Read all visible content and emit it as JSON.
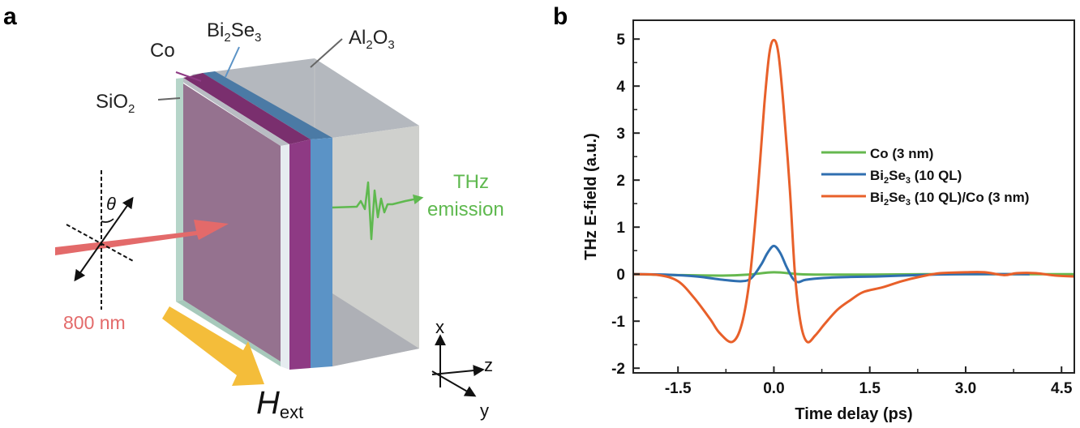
{
  "panel_a": {
    "panel_label": "a",
    "layers": {
      "co": {
        "label": "Co",
        "color": "#8e3a84"
      },
      "bi2se3": {
        "label_main": "Bi",
        "sub1": "2",
        "label_mid": "Se",
        "sub2": "3",
        "color": "#5b93c6"
      },
      "al2o3": {
        "label_main": "Al",
        "sub1": "2",
        "label_mid": "O",
        "sub2": "3",
        "color": "#c9cbc8"
      },
      "sio2": {
        "label_main": "SiO",
        "sub1": "2",
        "color": "#b6d5c9"
      },
      "substrate_face_color": "#95728f"
    },
    "pump": {
      "label": "800 nm",
      "color": "#e36a6a"
    },
    "polarization_angle_symbol": "θ",
    "emission": {
      "line1": "THz",
      "line2": "emission",
      "color": "#5fb94f"
    },
    "field": {
      "symbol": "H",
      "subscript": "ext",
      "color": "#f4bd3a"
    },
    "axes": {
      "x": "x",
      "y": "y",
      "z": "z"
    }
  },
  "panel_b": {
    "panel_label": "b"
  },
  "chart_data": {
    "type": "line",
    "title": "",
    "xlabel": "Time delay (ps)",
    "ylabel": "THz E-field (a.u.)",
    "xlim": [
      -2.2,
      4.7
    ],
    "ylim": [
      -2.1,
      5.4
    ],
    "xticks": [
      -1.5,
      0.0,
      1.5,
      3.0,
      4.5
    ],
    "xtick_labels": [
      "-1.5",
      "0.0",
      "1.5",
      "3.0",
      "4.5"
    ],
    "xminor": [
      -0.75,
      0.75,
      2.25,
      3.75
    ],
    "yticks": [
      -2,
      -1,
      0,
      1,
      2,
      3,
      4,
      5
    ],
    "ytick_labels": [
      "-2",
      "-1",
      "0",
      "1",
      "2",
      "3",
      "4",
      "5"
    ],
    "yminor": [
      -1.5,
      -0.5,
      0.5,
      1.5,
      2.5,
      3.5,
      4.5
    ],
    "grid": false,
    "legend_position": "center-right",
    "series": [
      {
        "name": "Co (3 nm)",
        "legend_main": "Co (3 nm)",
        "color": "#66b84f",
        "x": [
          -2.2,
          -1.5,
          -0.8,
          -0.4,
          0.0,
          0.4,
          0.8,
          1.5,
          2.5,
          3.5,
          4.7
        ],
        "y": [
          0.0,
          -0.02,
          -0.03,
          -0.01,
          0.04,
          0.0,
          -0.01,
          -0.01,
          0.0,
          0.0,
          0.0
        ]
      },
      {
        "name": "Bi2Se3 (10 QL)",
        "legend_main": "Bi",
        "legend_sub1": "2",
        "legend_mid": "Se",
        "legend_sub2": "3",
        "legend_tail": " (10 QL)",
        "color": "#2f6fb0",
        "x": [
          -2.2,
          -1.7,
          -1.2,
          -0.8,
          -0.5,
          -0.35,
          -0.2,
          -0.1,
          0.0,
          0.1,
          0.2,
          0.3,
          0.38,
          0.5,
          0.8,
          1.2,
          1.6,
          2.0,
          2.5,
          3.0,
          4.0
        ],
        "y": [
          0.0,
          -0.01,
          -0.05,
          -0.12,
          -0.15,
          -0.08,
          0.2,
          0.45,
          0.6,
          0.45,
          0.15,
          -0.1,
          -0.17,
          -0.12,
          -0.08,
          -0.06,
          -0.05,
          -0.03,
          -0.01,
          0.0,
          0.0
        ]
      },
      {
        "name": "Bi2Se3 (10 QL)/Co (3 nm)",
        "legend_main": "Bi",
        "legend_sub1": "2",
        "legend_mid": "Se",
        "legend_sub2": "3",
        "legend_tail": " (10 QL)/Co (3 nm)",
        "color": "#e8602a",
        "x": [
          -2.2,
          -1.8,
          -1.5,
          -1.25,
          -1.0,
          -0.85,
          -0.65,
          -0.5,
          -0.37,
          -0.25,
          -0.15,
          -0.07,
          0.0,
          0.07,
          0.15,
          0.25,
          0.33,
          0.42,
          0.52,
          0.65,
          0.8,
          1.0,
          1.2,
          1.4,
          1.7,
          2.0,
          2.3,
          2.6,
          3.0,
          3.3,
          3.6,
          3.8,
          4.1,
          4.4,
          4.7
        ],
        "y": [
          0.0,
          -0.02,
          -0.15,
          -0.5,
          -0.95,
          -1.25,
          -1.44,
          -1.05,
          0.0,
          1.8,
          3.6,
          4.7,
          4.98,
          4.7,
          3.6,
          1.8,
          0.0,
          -1.05,
          -1.44,
          -1.3,
          -1.05,
          -0.75,
          -0.55,
          -0.38,
          -0.28,
          -0.15,
          -0.05,
          0.02,
          0.04,
          0.04,
          -0.02,
          0.02,
          0.02,
          -0.03,
          -0.05
        ]
      }
    ]
  }
}
